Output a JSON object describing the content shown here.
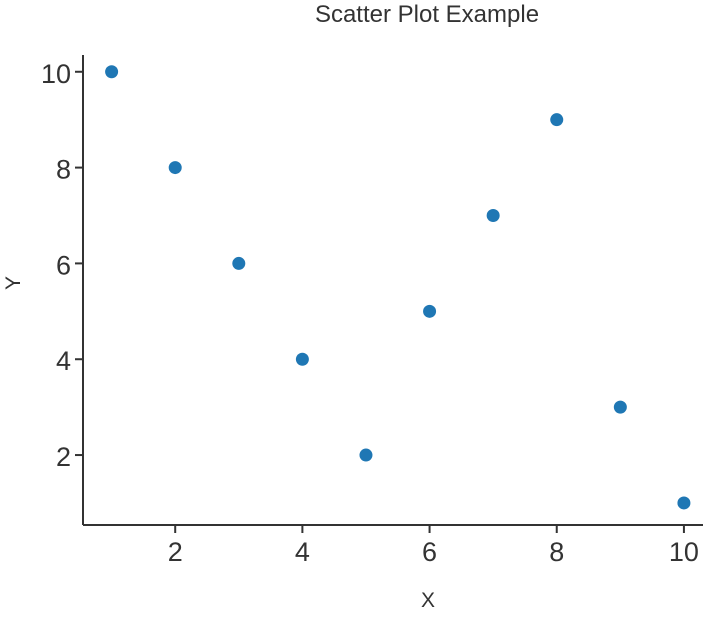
{
  "chart_data": {
    "type": "scatter",
    "title": "Scatter Plot Example",
    "xlabel": "X",
    "ylabel": "Y",
    "x": [
      1,
      2,
      3,
      4,
      5,
      6,
      7,
      8,
      9,
      10
    ],
    "y": [
      10,
      8,
      6,
      4,
      2,
      5,
      7,
      9,
      3,
      1
    ],
    "xticks": [
      2,
      4,
      6,
      8,
      10
    ],
    "yticks": [
      2,
      4,
      6,
      8,
      10
    ],
    "xlim": [
      0.55,
      10.3
    ],
    "ylim": [
      0.54,
      10.35
    ],
    "grid": false,
    "legend_position": "none",
    "marker_color": "#1f77b4",
    "marker_radius": 6.5,
    "axis_color": "#333333",
    "tick_label_color": "#333333",
    "tick_font_size": 27,
    "spines_shown": [
      "left",
      "bottom"
    ]
  }
}
